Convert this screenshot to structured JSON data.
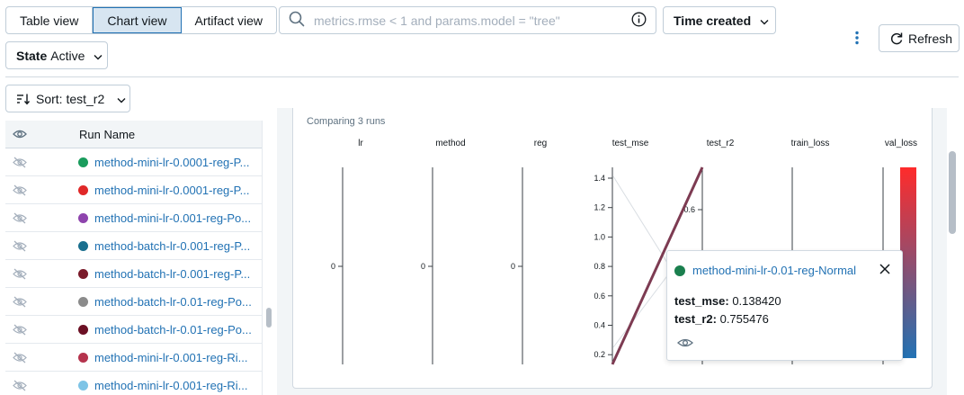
{
  "toolbar": {
    "views": [
      "Table view",
      "Chart view",
      "Artifact view"
    ],
    "active_view": "Chart view",
    "search_placeholder": "metrics.rmse < 1 and params.model = \"tree\"",
    "time_created_label": "Time created",
    "state_label": "State",
    "state_value": "Active",
    "refresh_label": "Refresh",
    "sort_label": "Sort: test_r2"
  },
  "table": {
    "column_header": "Run Name",
    "rows": [
      {
        "name": "method-mini-lr-0.0001-reg-P...",
        "color": "#1a9c5d"
      },
      {
        "name": "method-mini-lr-0.0001-reg-P...",
        "color": "#e02828"
      },
      {
        "name": "method-mini-lr-0.001-reg-Po...",
        "color": "#8e44ad"
      },
      {
        "name": "method-batch-lr-0.001-reg-P...",
        "color": "#1a6f8e"
      },
      {
        "name": "method-batch-lr-0.001-reg-P...",
        "color": "#7a1a2a"
      },
      {
        "name": "method-batch-lr-0.01-reg-Po...",
        "color": "#8b8b8b"
      },
      {
        "name": "method-batch-lr-0.01-reg-Po...",
        "color": "#6b1024"
      },
      {
        "name": "method-mini-lr-0.001-reg-Ri...",
        "color": "#b5334d"
      },
      {
        "name": "method-mini-lr-0.001-reg-Ri...",
        "color": "#7ec4e6"
      }
    ]
  },
  "chart_panel": {
    "subtitle": "Comparing 3 runs"
  },
  "chart_data": {
    "type": "parallel-coordinates",
    "axes": [
      {
        "name": "lr",
        "ticks": [
          "0"
        ]
      },
      {
        "name": "method",
        "ticks": [
          "0"
        ]
      },
      {
        "name": "reg",
        "ticks": [
          "0"
        ]
      },
      {
        "name": "test_mse",
        "ticks": [
          "1.4",
          "1.2",
          "1.0",
          "0.8",
          "0.6",
          "0.4",
          "0.2"
        ],
        "range": [
          0.138,
          1.45
        ]
      },
      {
        "name": "test_r2",
        "ticks": [
          "0.6"
        ],
        "range": [
          0.15,
          0.7555
        ]
      },
      {
        "name": "train_loss",
        "ticks": []
      },
      {
        "name": "val_loss",
        "ticks": []
      }
    ],
    "highlighted_run": {
      "test_mse": 0.13842,
      "test_r2": 0.755476,
      "color": "#7d3b52"
    },
    "colorbar": {
      "top_color": "#ff2b2b",
      "bottom_color": "#2272b4"
    }
  },
  "tooltip": {
    "run_name": "method-mini-lr-0.01-reg-Normal",
    "run_color": "#1a7f4e",
    "metrics": [
      {
        "key": "test_mse:",
        "value": "0.138420"
      },
      {
        "key": "test_r2:",
        "value": "0.755476"
      }
    ]
  }
}
